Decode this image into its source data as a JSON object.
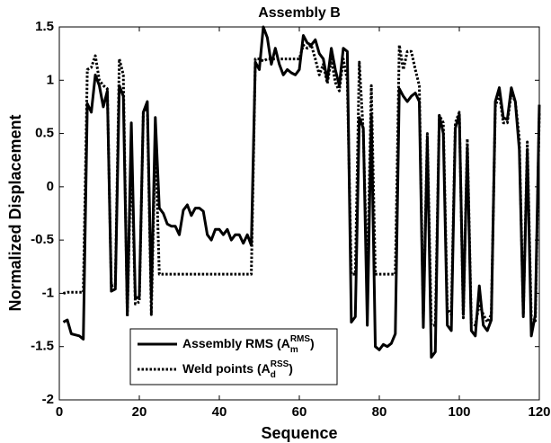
{
  "chart_data": {
    "type": "line",
    "title": "Assembly B",
    "xlabel": "Sequence",
    "ylabel": "Normalized Displacement",
    "xlim": [
      0,
      120
    ],
    "xticks": [
      0,
      20,
      40,
      60,
      80,
      100,
      120
    ],
    "ylim": [
      -2,
      1.5
    ],
    "yticks": [
      -2,
      -1.5,
      -1,
      -0.5,
      0,
      0.5,
      1,
      1.5
    ],
    "legend": "lower-left",
    "x": [
      1,
      2,
      3,
      4,
      5,
      6,
      7,
      8,
      9,
      10,
      11,
      12,
      13,
      14,
      15,
      16,
      17,
      18,
      19,
      20,
      21,
      22,
      23,
      24,
      25,
      26,
      27,
      28,
      29,
      30,
      31,
      32,
      33,
      34,
      35,
      36,
      37,
      38,
      39,
      40,
      41,
      42,
      43,
      44,
      45,
      46,
      47,
      48,
      49,
      50,
      51,
      52,
      53,
      54,
      55,
      56,
      57,
      58,
      59,
      60,
      61,
      62,
      63,
      64,
      65,
      66,
      67,
      68,
      69,
      70,
      71,
      72,
      73,
      74,
      75,
      76,
      77,
      78,
      79,
      80,
      81,
      82,
      83,
      84,
      85,
      86,
      87,
      88,
      89,
      90,
      91,
      92,
      93,
      94,
      95,
      96,
      97,
      98,
      99,
      100,
      101,
      102,
      103,
      104,
      105,
      106,
      107,
      108,
      109,
      110,
      111,
      112,
      113,
      114,
      115,
      116,
      117,
      118,
      119,
      120
    ],
    "series": [
      {
        "name": "Assembly RMS (A",
        "name_sub": "m",
        "name_sup": "RMS",
        "name_tail": ")",
        "color": "#000000",
        "line_style": "solid",
        "values": [
          -1.27,
          -1.25,
          -1.38,
          -1.39,
          -1.4,
          -1.43,
          0.78,
          0.7,
          1.05,
          0.95,
          0.75,
          0.9,
          -0.98,
          -0.96,
          0.95,
          0.85,
          -1.2,
          0.6,
          -1.05,
          -1.03,
          0.7,
          0.8,
          -1.05,
          0.65,
          -0.2,
          -0.25,
          -0.35,
          -0.37,
          -0.37,
          -0.45,
          -0.22,
          -0.17,
          -0.27,
          -0.2,
          -0.2,
          -0.23,
          -0.45,
          -0.5,
          -0.4,
          -0.4,
          -0.45,
          -0.4,
          -0.5,
          -0.45,
          -0.45,
          -0.53,
          -0.45,
          -0.55,
          1.17,
          1.1,
          1.5,
          1.4,
          1.15,
          1.3,
          1.15,
          1.05,
          1.1,
          1.07,
          1.05,
          1.1,
          1.42,
          1.35,
          1.33,
          1.38,
          1.25,
          1.2,
          1.0,
          1.3,
          1.1,
          0.95,
          1.3,
          1.27,
          -1.27,
          -1.22,
          0.65,
          0.55,
          -1.3,
          0.67,
          -1.5,
          -1.53,
          -1.48,
          -1.5,
          -1.47,
          -1.38,
          0.92,
          0.85,
          0.8,
          0.85,
          0.88,
          0.8,
          -1.32,
          0.45,
          -1.6,
          -1.55,
          0.67,
          0.5,
          -1.3,
          -1.35,
          0.55,
          0.68,
          -1.2,
          0.37,
          -1.35,
          -1.4,
          -0.93,
          -1.3,
          -1.35,
          -1.25,
          0.8,
          0.93,
          0.65,
          0.63,
          0.93,
          0.8,
          0.35,
          -1.22,
          0.35,
          -1.4,
          -1.2,
          0.77
        ]
      },
      {
        "name": "Weld points (A",
        "name_sub": "d",
        "name_sup": "RSS",
        "name_tail": ")",
        "color": "#000000",
        "line_style": "dotted",
        "values": [
          -1.0,
          -0.99,
          -0.99,
          -0.99,
          -0.99,
          -0.99,
          1.1,
          1.12,
          1.23,
          1.0,
          0.95,
          0.92,
          -0.93,
          -0.92,
          1.2,
          1.05,
          -1.22,
          0.35,
          -1.1,
          -1.08,
          0.7,
          0.75,
          -1.2,
          0.45,
          -0.82,
          -0.82,
          -0.82,
          -0.82,
          -0.82,
          -0.82,
          -0.82,
          -0.82,
          -0.82,
          -0.82,
          -0.82,
          -0.82,
          -0.82,
          -0.82,
          -0.82,
          -0.82,
          -0.82,
          -0.82,
          -0.82,
          -0.82,
          -0.82,
          -0.82,
          -0.82,
          -0.82,
          1.2,
          1.2,
          1.18,
          1.2,
          1.2,
          1.2,
          1.2,
          1.2,
          1.2,
          1.2,
          1.2,
          1.2,
          1.33,
          1.3,
          1.33,
          1.2,
          1.05,
          1.15,
          0.97,
          1.2,
          0.98,
          0.9,
          1.2,
          1.0,
          -0.82,
          -0.82,
          1.17,
          0.5,
          -0.9,
          0.95,
          -0.82,
          -0.82,
          -0.82,
          -0.82,
          -0.82,
          -0.82,
          1.33,
          1.1,
          1.27,
          1.27,
          1.1,
          0.95,
          -1.23,
          0.5,
          -1.3,
          -1.3,
          0.67,
          0.6,
          -1.15,
          -1.2,
          0.6,
          0.7,
          -1.23,
          0.45,
          -1.28,
          -1.3,
          -1.1,
          -1.2,
          -1.27,
          -1.2,
          0.75,
          0.88,
          0.6,
          0.6,
          0.88,
          0.8,
          0.45,
          -1.2,
          0.42,
          -1.25,
          -1.28,
          0.7
        ]
      }
    ]
  }
}
